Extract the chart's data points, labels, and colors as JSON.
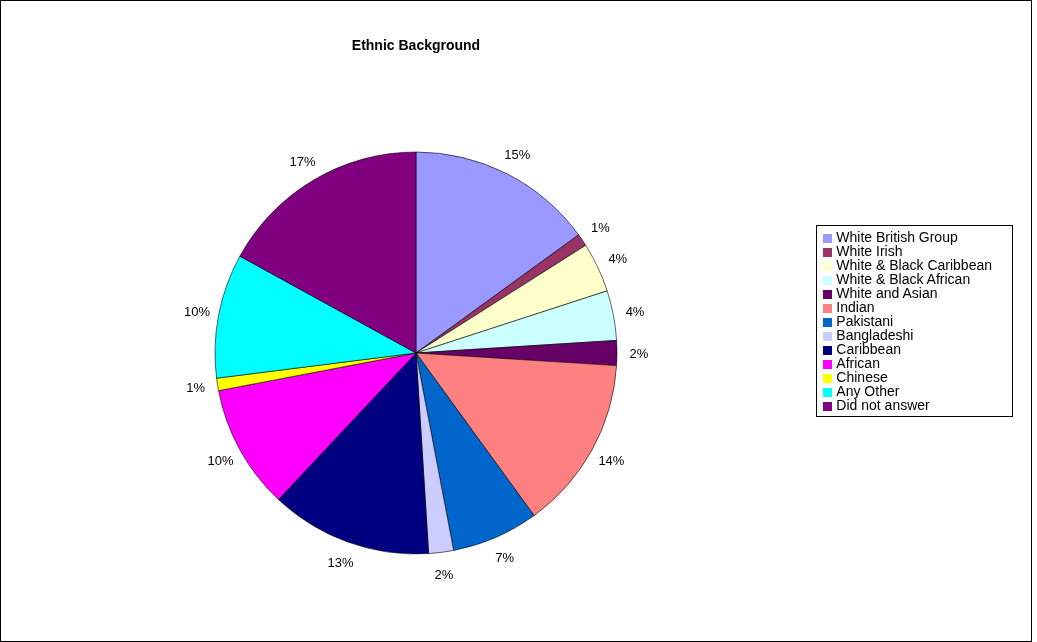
{
  "chart_data": {
    "type": "pie",
    "title": "Ethnic Background",
    "categories": [
      "White British Group",
      "White Irish",
      "White & Black Caribbean",
      "White & Black African",
      "White and Asian",
      "Indian",
      "Pakistani",
      "Bangladeshi",
      "Caribbean",
      "African",
      "Chinese",
      "Any Other",
      "Did not answer"
    ],
    "values": [
      15,
      1,
      4,
      4,
      2,
      14,
      7,
      2,
      13,
      10,
      1,
      10,
      17
    ],
    "value_labels": [
      "15%",
      "1%",
      "4%",
      "4%",
      "2%",
      "14%",
      "7%",
      "2%",
      "13%",
      "10%",
      "1%",
      "10%",
      "17%"
    ],
    "colors": [
      "#9999ff",
      "#993366",
      "#ffffcc",
      "#ccffff",
      "#660066",
      "#ff8080",
      "#0066cc",
      "#ccccff",
      "#000080",
      "#ff00ff",
      "#ffff00",
      "#00ffff",
      "#800080"
    ],
    "legend": "right"
  }
}
